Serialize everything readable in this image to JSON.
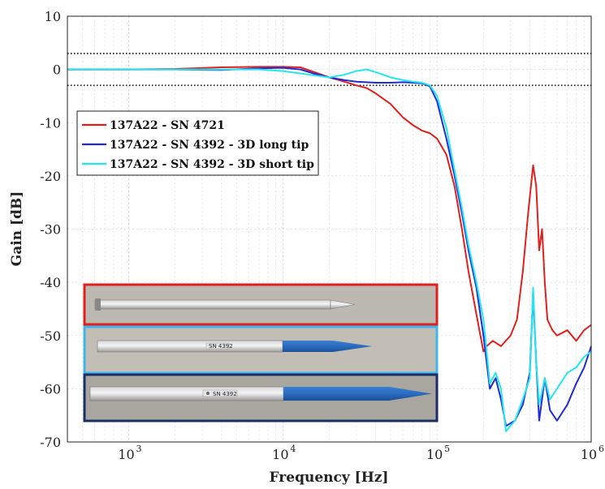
{
  "chart_data": {
    "type": "line",
    "xlabel": "Frequency [Hz]",
    "ylabel": "Gain [dB]",
    "xscale": "log",
    "xlim": [
      400,
      1000000
    ],
    "ylim": [
      -70,
      10
    ],
    "x_ticks": [
      {
        "value": 1000,
        "base": "10",
        "exp": "3"
      },
      {
        "value": 10000,
        "base": "10",
        "exp": "4"
      },
      {
        "value": 100000,
        "base": "10",
        "exp": "5"
      },
      {
        "value": 1000000,
        "base": "10",
        "exp": "6"
      }
    ],
    "y_ticks": [
      "10",
      "0",
      "-10",
      "-20",
      "-30",
      "-40",
      "-50",
      "-60",
      "-70"
    ],
    "grid": true,
    "legend_position": "upper-left",
    "reference_lines": [
      3,
      -3
    ],
    "series": [
      {
        "name": "137A22 - SN 4721",
        "color": "#e0201c",
        "points": [
          [
            400,
            0
          ],
          [
            1000,
            0
          ],
          [
            2000,
            0.1
          ],
          [
            4000,
            0.4
          ],
          [
            7000,
            0.5
          ],
          [
            10000,
            0.5
          ],
          [
            13000,
            0.4
          ],
          [
            16000,
            -0.5
          ],
          [
            20000,
            -1.5
          ],
          [
            25000,
            -2.3
          ],
          [
            30000,
            -3
          ],
          [
            35000,
            -3.5
          ],
          [
            40000,
            -4.5
          ],
          [
            50000,
            -6.5
          ],
          [
            60000,
            -9
          ],
          [
            70000,
            -10.5
          ],
          [
            80000,
            -11.5
          ],
          [
            90000,
            -12
          ],
          [
            100000,
            -13
          ],
          [
            115000,
            -16
          ],
          [
            130000,
            -22
          ],
          [
            145000,
            -30
          ],
          [
            160000,
            -38
          ],
          [
            180000,
            -46
          ],
          [
            200000,
            -53
          ],
          [
            210000,
            -52
          ],
          [
            230000,
            -51
          ],
          [
            260000,
            -52
          ],
          [
            300000,
            -50
          ],
          [
            330000,
            -47
          ],
          [
            360000,
            -38
          ],
          [
            390000,
            -27
          ],
          [
            420000,
            -18
          ],
          [
            440000,
            -22
          ],
          [
            460000,
            -34
          ],
          [
            480000,
            -30
          ],
          [
            500000,
            -40
          ],
          [
            520000,
            -47
          ],
          [
            560000,
            -49
          ],
          [
            600000,
            -50
          ],
          [
            700000,
            -49
          ],
          [
            800000,
            -51
          ],
          [
            900000,
            -49
          ],
          [
            1000000,
            -48
          ]
        ]
      },
      {
        "name": "137A22 - SN 4392 - 3D long tip",
        "color": "#1f2cd6",
        "points": [
          [
            400,
            0
          ],
          [
            1000,
            0
          ],
          [
            2000,
            0
          ],
          [
            4000,
            -0.1
          ],
          [
            7000,
            0.2
          ],
          [
            10000,
            0.3
          ],
          [
            13000,
            0
          ],
          [
            16000,
            -0.8
          ],
          [
            20000,
            -1.5
          ],
          [
            25000,
            -2
          ],
          [
            30000,
            -2.3
          ],
          [
            40000,
            -2.5
          ],
          [
            50000,
            -2.5
          ],
          [
            60000,
            -2.4
          ],
          [
            70000,
            -2.5
          ],
          [
            80000,
            -2.6
          ],
          [
            90000,
            -3.2
          ],
          [
            100000,
            -6
          ],
          [
            115000,
            -13
          ],
          [
            130000,
            -20
          ],
          [
            145000,
            -27
          ],
          [
            160000,
            -34
          ],
          [
            180000,
            -41
          ],
          [
            200000,
            -50
          ],
          [
            220000,
            -60
          ],
          [
            240000,
            -58
          ],
          [
            260000,
            -62
          ],
          [
            280000,
            -67
          ],
          [
            320000,
            -66
          ],
          [
            360000,
            -63
          ],
          [
            400000,
            -57
          ],
          [
            420000,
            -42
          ],
          [
            440000,
            -55
          ],
          [
            460000,
            -66
          ],
          [
            500000,
            -58
          ],
          [
            540000,
            -64
          ],
          [
            600000,
            -66
          ],
          [
            700000,
            -63
          ],
          [
            800000,
            -59
          ],
          [
            900000,
            -56
          ],
          [
            1000000,
            -52
          ]
        ]
      },
      {
        "name": "137A22 - SN 4392 - 3D short tip",
        "color": "#22e6f0",
        "points": [
          [
            400,
            0
          ],
          [
            1000,
            0
          ],
          [
            2000,
            0
          ],
          [
            4000,
            0
          ],
          [
            7000,
            0
          ],
          [
            10000,
            -0.3
          ],
          [
            15000,
            -1
          ],
          [
            20000,
            -1.5
          ],
          [
            25000,
            -1
          ],
          [
            30000,
            -0.3
          ],
          [
            35000,
            0
          ],
          [
            40000,
            -0.5
          ],
          [
            50000,
            -1.5
          ],
          [
            60000,
            -2
          ],
          [
            70000,
            -2.3
          ],
          [
            80000,
            -2.5
          ],
          [
            90000,
            -3
          ],
          [
            100000,
            -5
          ],
          [
            115000,
            -11
          ],
          [
            130000,
            -19
          ],
          [
            145000,
            -26
          ],
          [
            160000,
            -33
          ],
          [
            180000,
            -40
          ],
          [
            200000,
            -47
          ],
          [
            220000,
            -59
          ],
          [
            240000,
            -57
          ],
          [
            260000,
            -60
          ],
          [
            280000,
            -68
          ],
          [
            320000,
            -66
          ],
          [
            360000,
            -62
          ],
          [
            400000,
            -58
          ],
          [
            420000,
            -41
          ],
          [
            440000,
            -55
          ],
          [
            460000,
            -63
          ],
          [
            500000,
            -58
          ],
          [
            540000,
            -62
          ],
          [
            600000,
            -60
          ],
          [
            700000,
            -57
          ],
          [
            800000,
            -56
          ],
          [
            900000,
            -54
          ],
          [
            1000000,
            -53
          ]
        ]
      }
    ]
  },
  "inset": {
    "probe_top_frame_color": "#e0201c",
    "probe_middle_frame_color": "#3fb5ec",
    "probe_bottom_frame_color": "#1a2e66",
    "probe_middle_label": "SN 4392",
    "probe_bottom_label": "SN 4392"
  }
}
